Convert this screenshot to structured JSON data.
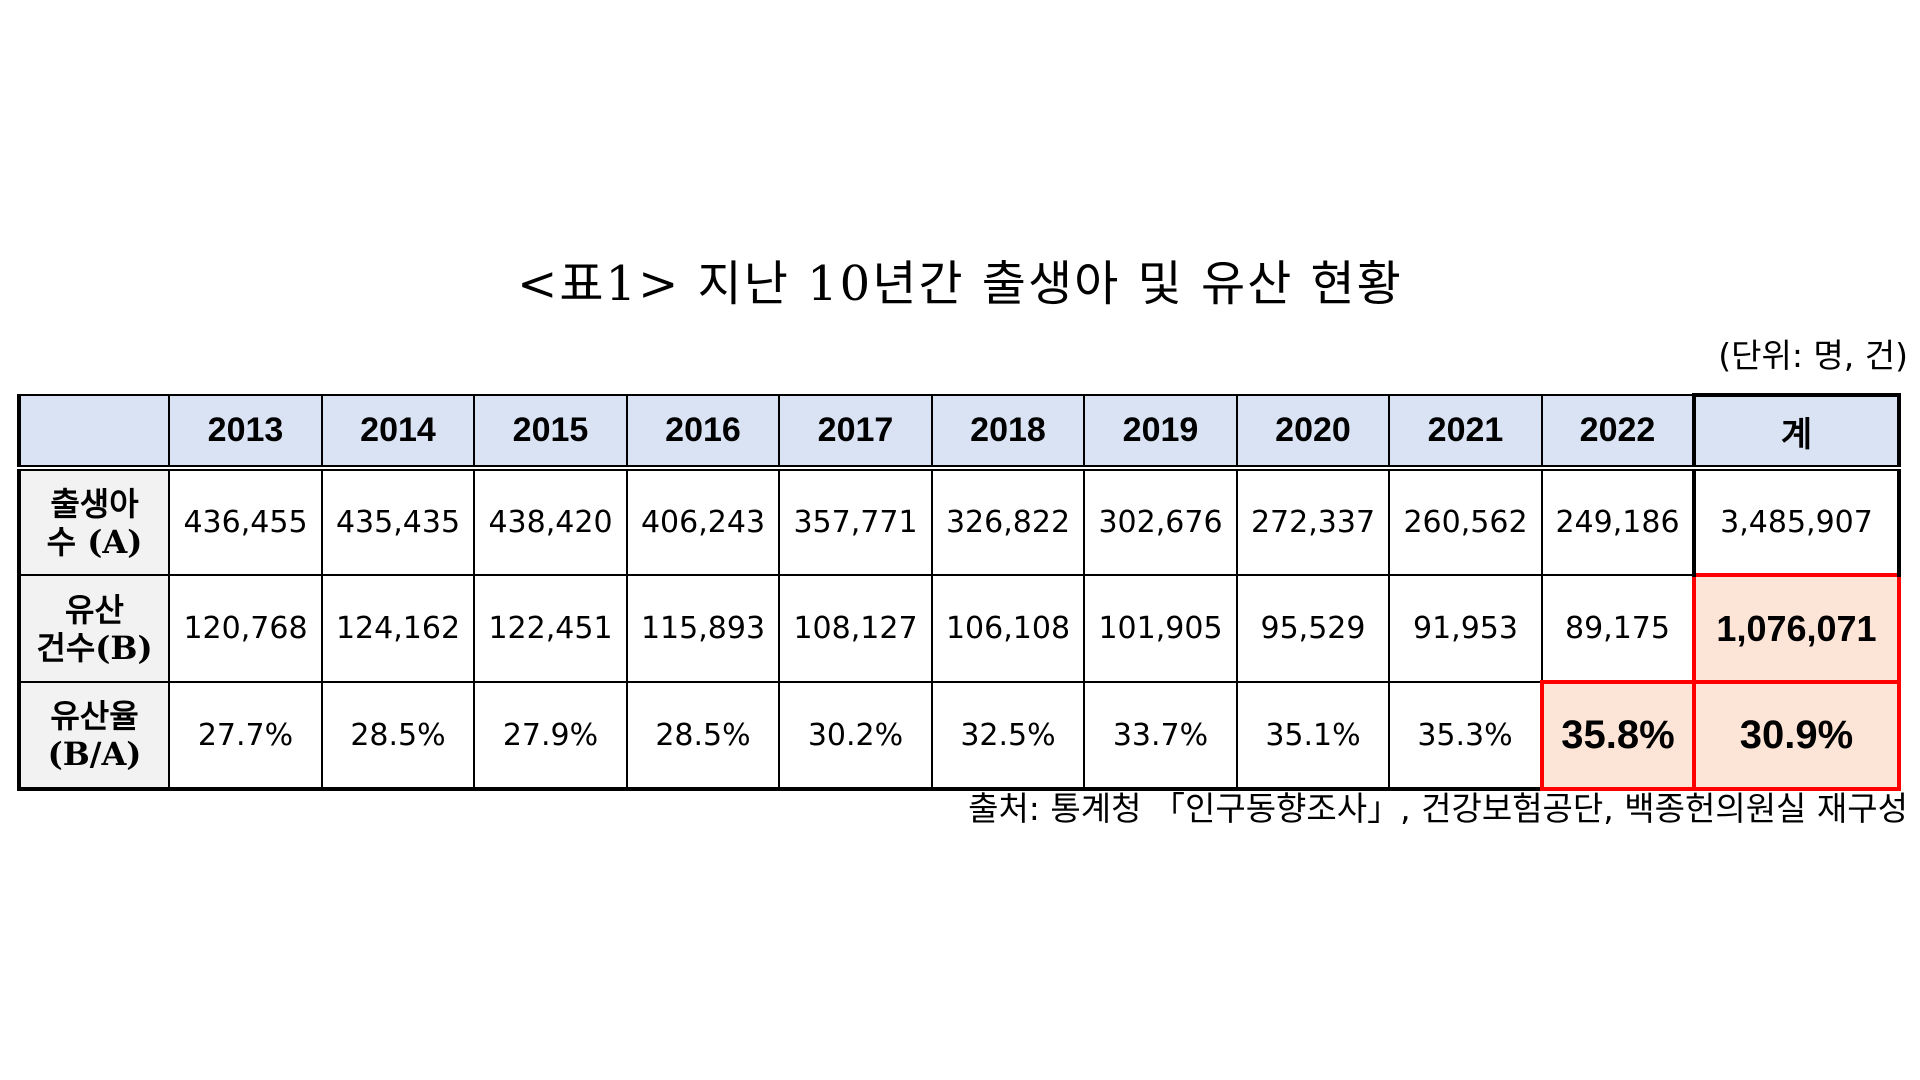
{
  "title": "<표1> 지난 10년간 출생아 및 유산 현황",
  "unit": "(단위: 명, 건)",
  "table": {
    "columns": [
      "",
      "2013",
      "2014",
      "2015",
      "2016",
      "2017",
      "2018",
      "2019",
      "2020",
      "2021",
      "2022",
      "계"
    ],
    "rows": [
      {
        "label": "출생아\n수 (A)",
        "values": [
          "436,455",
          "435,435",
          "438,420",
          "406,243",
          "357,771",
          "326,822",
          "302,676",
          "272,337",
          "260,562",
          "249,186"
        ],
        "total": "3,485,907"
      },
      {
        "label": "유산\n건수(B)",
        "values": [
          "120,768",
          "124,162",
          "122,451",
          "115,893",
          "108,127",
          "106,108",
          "101,905",
          "95,529",
          "91,953",
          "89,175"
        ],
        "total": "1,076,071"
      },
      {
        "label": "유산율\n(B/A)",
        "values": [
          "27.7%",
          "28.5%",
          "27.9%",
          "28.5%",
          "30.2%",
          "32.5%",
          "33.7%",
          "35.1%",
          "35.3%",
          "35.8%"
        ],
        "total": "30.9%"
      }
    ]
  },
  "source": "출처: 통계청 「인구동향조사」, 건강보험공단, 백종헌의원실 재구성",
  "colors": {
    "header_bg": "#dae3f3",
    "highlight_bg": "#fce4d6",
    "highlight_border": "#ff0000",
    "rowhead_bg": "#f2f2f2"
  }
}
